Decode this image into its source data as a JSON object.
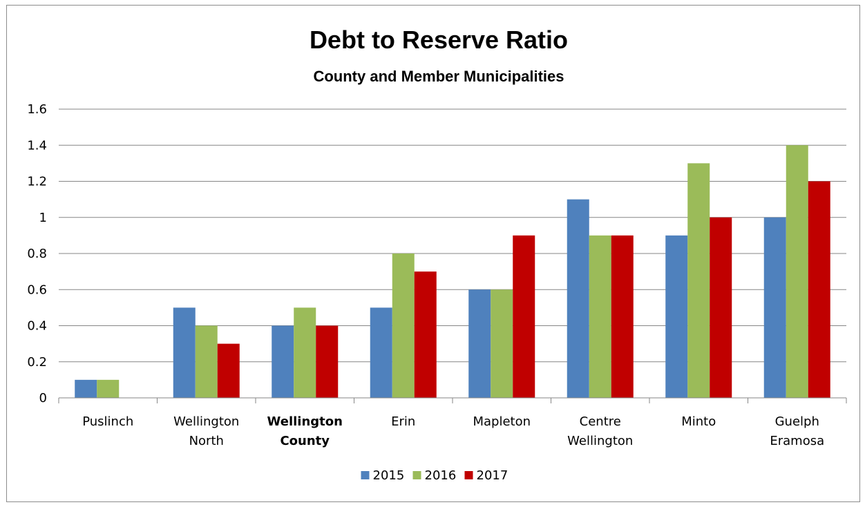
{
  "chart_data": {
    "type": "bar",
    "title": "Debt to Reserve Ratio",
    "subtitle": "County and Member Municipalities",
    "categories": [
      [
        "Puslinch"
      ],
      [
        "Wellington",
        "North"
      ],
      [
        "Wellington",
        "County"
      ],
      [
        "Erin"
      ],
      [
        "Mapleton"
      ],
      [
        "Centre",
        "Wellington"
      ],
      [
        "Minto"
      ],
      [
        "Guelph",
        "Eramosa"
      ]
    ],
    "bold_categories": [
      2
    ],
    "series": [
      {
        "name": "2015",
        "color": "#4f81bd",
        "values": [
          0.1,
          0.5,
          0.4,
          0.5,
          0.6,
          1.1,
          0.9,
          1.0
        ]
      },
      {
        "name": "2016",
        "color": "#9bbb59",
        "values": [
          0.1,
          0.4,
          0.5,
          0.8,
          0.6,
          0.9,
          1.3,
          1.4
        ]
      },
      {
        "name": "2017",
        "color": "#c00000",
        "values": [
          0,
          0.3,
          0.4,
          0.7,
          0.9,
          0.9,
          1.0,
          1.2
        ]
      }
    ],
    "ylim": [
      0,
      1.6
    ],
    "yticks": [
      "0",
      "0.2",
      "0.4",
      "0.6",
      "0.8",
      "1",
      "1.2",
      "1.4",
      "1.6"
    ],
    "grid": true,
    "legend": "bottom"
  }
}
